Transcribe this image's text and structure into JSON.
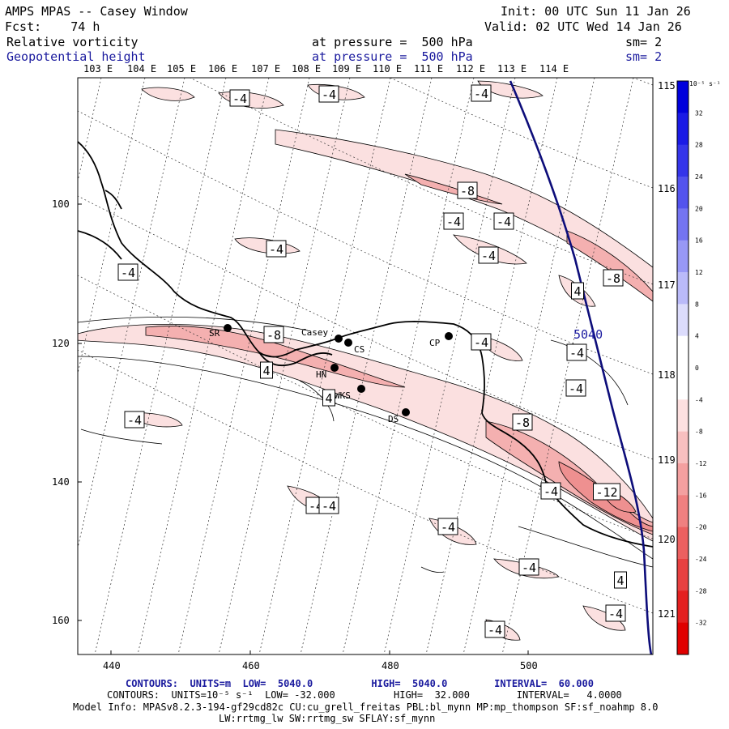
{
  "header": {
    "model_title": "AMPS MPAS -- Casey Window",
    "forecast": "Fcst:    74 h",
    "init": "Init: 00 UTC Sun 11 Jan 26",
    "valid": "Valid: 02 UTC Wed 14 Jan 26",
    "field1_name": "Relative vorticity",
    "field1_level": "at pressure =  500 hPa",
    "field1_smooth": "sm= 2",
    "field2_name": "Geopotential height",
    "field2_level": "at pressure =  500 hPa",
    "field2_smooth": "sm= 2"
  },
  "map": {
    "lon_labels_top": [
      "103 E",
      "104 E",
      "105 E",
      "106 E",
      "107 E",
      "108 E",
      "109 E",
      "110 E",
      "111 E",
      "112 E",
      "113 E",
      "114 E"
    ],
    "lon_labels_right": [
      "115 E",
      "116 E",
      "117 E",
      "118 E",
      "119 E",
      "120 E",
      "121 E"
    ],
    "x_ticks": [
      440,
      460,
      480,
      500
    ],
    "y_ticks": [
      100,
      120,
      140,
      160
    ],
    "stations": [
      "SR",
      "Casey",
      "CS",
      "CP",
      "HN",
      "WKS",
      "DS"
    ],
    "height_contour_label": "5040",
    "vorticity_labels": [
      "-4",
      "-4",
      "-4",
      "-8",
      "-4",
      "-4",
      "-4",
      "-4",
      "-8",
      "-4",
      "4",
      "-8",
      "-4",
      "-4",
      "4",
      "-4",
      "4",
      "-4",
      "-8",
      "-4",
      "-12",
      "-4",
      "-4",
      "-4",
      "4",
      "-4",
      "-4",
      "-4",
      "-4"
    ]
  },
  "colorbar": {
    "unit": "10⁻⁵ s⁻¹",
    "ticks": [
      "32",
      "28",
      "24",
      "20",
      "16",
      "12",
      "8",
      "4",
      "0",
      "-4",
      "-8",
      "-12",
      "-16",
      "-20",
      "-24",
      "-28",
      "-32"
    ],
    "colors": [
      "#0000dc",
      "#1a1ae6",
      "#3535ea",
      "#5353ee",
      "#7474f2",
      "#9898f6",
      "#babaf9",
      "#dcdcfc",
      "#ffffff",
      "#ffffff",
      "#fde0e0",
      "#f8c0c0",
      "#f4a0a0",
      "#f08080",
      "#ec6060",
      "#e84040",
      "#e42020",
      "#e00000"
    ]
  },
  "footer": {
    "contours_height": "CONTOURS:  UNITS=m  LOW=  5040.0          HIGH=  5040.0        INTERVAL=  60.000",
    "contours_vort": "CONTOURS:  UNITS=10⁻⁵ s⁻¹  LOW= -32.000          HIGH=  32.000        INTERVAL=   4.0000",
    "model_info_1": "Model Info: MPASv8.2.3-194-gf29cd82c CU:cu_grell_freitas PBL:bl_mynn MP:mp_thompson SF:sf_noahmp 8.0",
    "model_info_2": "LW:rrtmg_lw SW:rrtmg_sw SFLAY:sf_mynn"
  }
}
